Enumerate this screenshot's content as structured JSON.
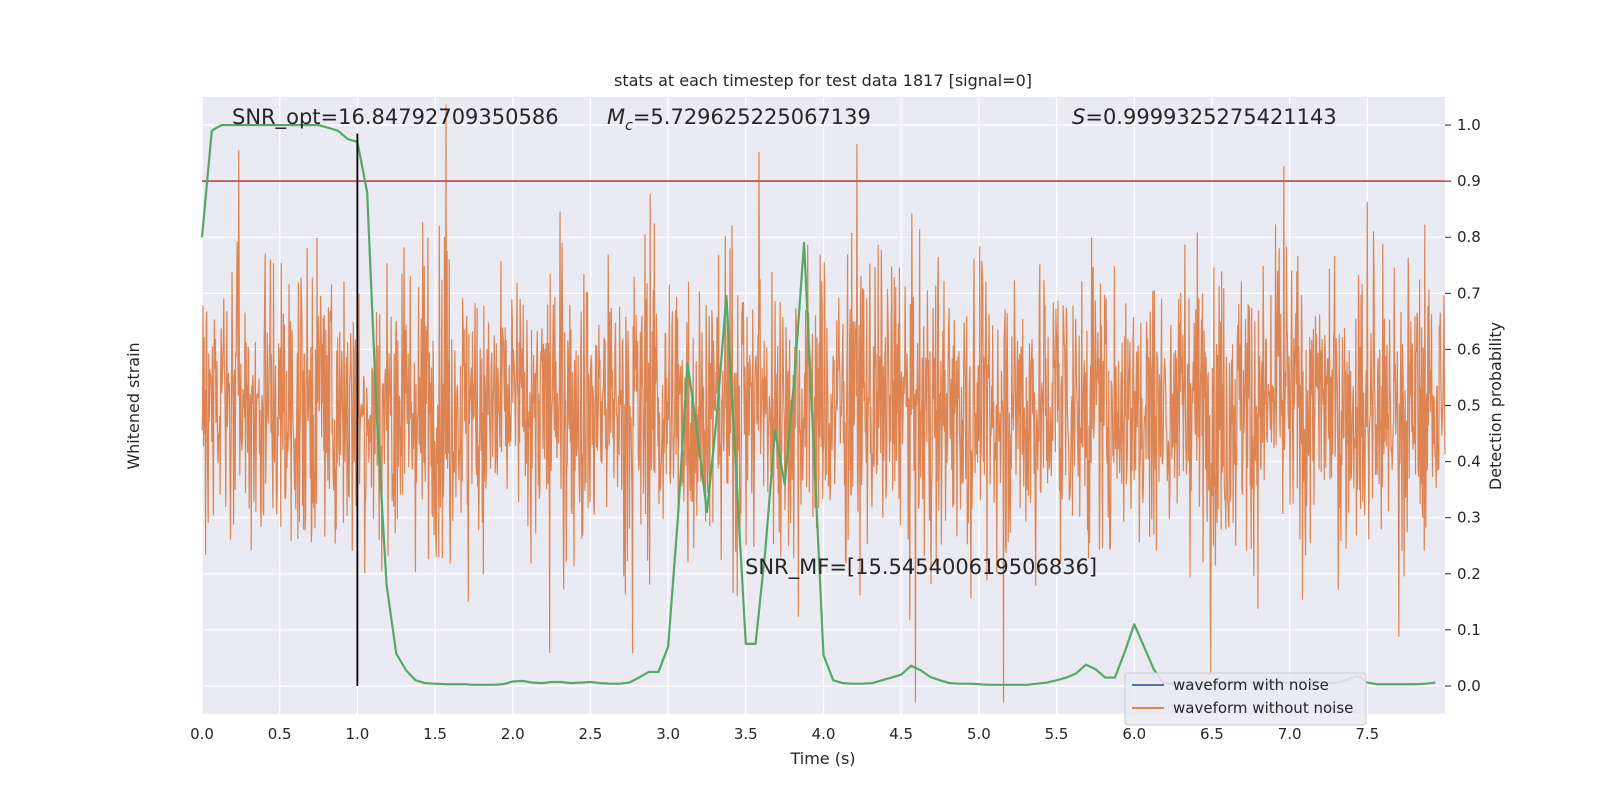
{
  "chart_data": {
    "type": "line",
    "title": "stats at each timestep for test data 1817 [signal=0]",
    "xlabel": "Time (s)",
    "ylabel_left": "Whitened strain",
    "ylabel_right": "Detection probability",
    "xlim": [
      0.0,
      8.0
    ],
    "ylim_right": [
      -0.05,
      1.05
    ],
    "x_ticks": [
      "0.0",
      "0.5",
      "1.0",
      "1.5",
      "2.0",
      "2.5",
      "3.0",
      "3.5",
      "4.0",
      "4.5",
      "5.0",
      "5.5",
      "6.0",
      "6.5",
      "7.0",
      "7.5"
    ],
    "y_ticks_right": [
      "0.0",
      "0.1",
      "0.2",
      "0.3",
      "0.4",
      "0.5",
      "0.6",
      "0.7",
      "0.8",
      "0.9",
      "1.0"
    ],
    "grid": true,
    "background": "#eaeaf2",
    "annotations": {
      "snr_opt": "SNR_opt=16.84792709350586",
      "mc_symbol": "M",
      "mc_subscript": "c",
      "mc_value": "=5.729625225067139",
      "s_symbol": "S",
      "s_value": "=0.9999325275421143",
      "snr_mf": "SNR_MF=[15.545400619506836]"
    },
    "threshold": 0.9,
    "marker_time": 1.0,
    "series": [
      {
        "name": "waveform with noise",
        "color": "#4c72b0"
      },
      {
        "name": "waveform without noise",
        "color": "#dd8452"
      }
    ],
    "detection_color": "#55a868",
    "threshold_color": "#c44e52",
    "detection_probability": {
      "x": [
        0.0,
        0.063,
        0.125,
        0.188,
        0.25,
        0.313,
        0.375,
        0.438,
        0.5,
        0.563,
        0.625,
        0.688,
        0.75,
        0.813,
        0.875,
        0.938,
        1.0,
        1.063,
        1.125,
        1.188,
        1.25,
        1.313,
        1.375,
        1.438,
        1.5,
        1.563,
        1.625,
        1.688,
        1.75,
        1.813,
        1.875,
        1.938,
        2.0,
        2.063,
        2.125,
        2.188,
        2.25,
        2.313,
        2.375,
        2.438,
        2.5,
        2.563,
        2.625,
        2.688,
        2.75,
        2.813,
        2.875,
        2.938,
        3.0,
        3.063,
        3.125,
        3.188,
        3.25,
        3.313,
        3.375,
        3.438,
        3.5,
        3.563,
        3.625,
        3.688,
        3.75,
        3.813,
        3.875,
        3.938,
        4.0,
        4.063,
        4.125,
        4.188,
        4.25,
        4.313,
        4.375,
        4.438,
        4.5,
        4.563,
        4.625,
        4.688,
        4.75,
        4.813,
        4.875,
        4.938,
        5.0,
        5.063,
        5.125,
        5.188,
        5.25,
        5.313,
        5.375,
        5.438,
        5.5,
        5.563,
        5.625,
        5.688,
        5.75,
        5.813,
        5.875,
        5.938,
        6.0,
        6.063,
        6.125,
        6.188,
        6.25,
        6.313,
        6.375,
        6.438,
        6.5,
        6.563,
        6.625,
        6.688,
        6.75,
        6.813,
        6.875,
        6.938,
        7.0,
        7.063,
        7.125,
        7.188,
        7.25,
        7.313,
        7.375,
        7.438,
        7.5,
        7.563,
        7.625,
        7.688,
        7.75,
        7.813,
        7.875,
        7.938
      ],
      "y": [
        0.8,
        0.99,
        1.0,
        1.0,
        1.0,
        1.0,
        1.0,
        1.0,
        1.0,
        1.0,
        1.0,
        1.0,
        1.0,
        0.995,
        0.99,
        0.975,
        0.97,
        0.88,
        0.48,
        0.18,
        0.058,
        0.028,
        0.01,
        0.005,
        0.004,
        0.003,
        0.003,
        0.003,
        0.002,
        0.002,
        0.002,
        0.003,
        0.008,
        0.009,
        0.006,
        0.005,
        0.007,
        0.007,
        0.005,
        0.006,
        0.007,
        0.005,
        0.004,
        0.004,
        0.006,
        0.015,
        0.025,
        0.025,
        0.07,
        0.3,
        0.575,
        0.45,
        0.31,
        0.48,
        0.695,
        0.38,
        0.075,
        0.075,
        0.24,
        0.455,
        0.36,
        0.55,
        0.79,
        0.42,
        0.055,
        0.01,
        0.005,
        0.004,
        0.004,
        0.005,
        0.01,
        0.015,
        0.02,
        0.036,
        0.028,
        0.016,
        0.01,
        0.005,
        0.004,
        0.004,
        0.003,
        0.002,
        0.002,
        0.002,
        0.002,
        0.002,
        0.004,
        0.006,
        0.01,
        0.015,
        0.022,
        0.038,
        0.03,
        0.015,
        0.015,
        0.06,
        0.11,
        0.07,
        0.03,
        0.005,
        0.004,
        0.005,
        0.004,
        0.003,
        0.003,
        0.004,
        0.005,
        0.006,
        0.006,
        0.004,
        0.004,
        0.006,
        0.006,
        0.008,
        0.01,
        0.007,
        0.005,
        0.006,
        0.012,
        0.018,
        0.006,
        0.003,
        0.003,
        0.003,
        0.003,
        0.003,
        0.004,
        0.006
      ]
    }
  },
  "legend": {
    "items": [
      {
        "label": "waveform with noise",
        "color": "#4c72b0"
      },
      {
        "label": "waveform without noise",
        "color": "#dd8452"
      }
    ]
  }
}
